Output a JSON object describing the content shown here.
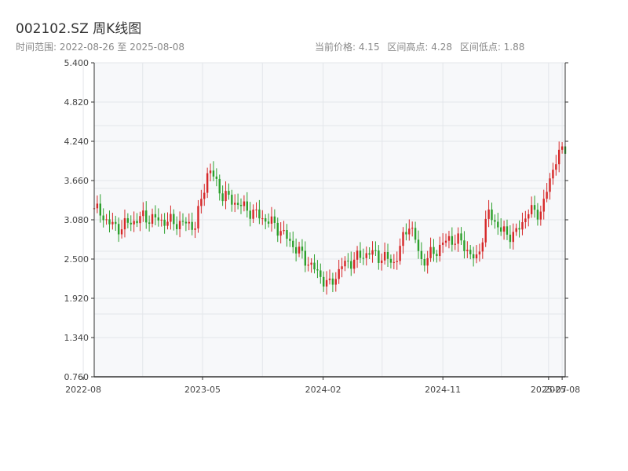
{
  "title": "002102.SZ 周K线图",
  "subtitle": "时间范围: 2022-08-26 至 2025-08-08",
  "stats": {
    "current": "当前价格: 4.15",
    "high": "区间高点: 4.28",
    "low": "区间低点: 1.88"
  },
  "colors": {
    "up": "#d62728",
    "down": "#2ca02c",
    "plot_bg": "#f7f8fa",
    "grid": "#e3e6ea"
  },
  "chart_data": {
    "type": "candlestick",
    "x_axis": "time",
    "ylim": [
      0.76,
      5.4
    ],
    "yticks": [
      "5.400",
      "4.820",
      "4.240",
      "3.660",
      "3.080",
      "2.500",
      "1.920",
      "1.340",
      "0.760"
    ],
    "xticks": [
      "2022-08",
      "2023-05",
      "2024-02",
      "2024-11",
      "2025-07",
      "2025-08"
    ],
    "date_range": [
      "2022-08-26",
      "2025-08-08"
    ],
    "close_trend": [
      {
        "date": "2022-08",
        "close": 3.25
      },
      {
        "date": "2022-10",
        "close": 2.95
      },
      {
        "date": "2022-12",
        "close": 3.12
      },
      {
        "date": "2023-02",
        "close": 3.05
      },
      {
        "date": "2023-04",
        "close": 3.0
      },
      {
        "date": "2023-05",
        "close": 3.85
      },
      {
        "date": "2023-06",
        "close": 3.45
      },
      {
        "date": "2023-08",
        "close": 3.22
      },
      {
        "date": "2023-10",
        "close": 3.0
      },
      {
        "date": "2023-12",
        "close": 2.55
      },
      {
        "date": "2024-02",
        "close": 2.1
      },
      {
        "date": "2024-03",
        "close": 2.4
      },
      {
        "date": "2024-05",
        "close": 2.6
      },
      {
        "date": "2024-07",
        "close": 2.45
      },
      {
        "date": "2024-08",
        "close": 3.05
      },
      {
        "date": "2024-09",
        "close": 2.45
      },
      {
        "date": "2024-11",
        "close": 2.8
      },
      {
        "date": "2024-12",
        "close": 2.75
      },
      {
        "date": "2025-01",
        "close": 2.45
      },
      {
        "date": "2025-02",
        "close": 3.2
      },
      {
        "date": "2025-03",
        "close": 2.9
      },
      {
        "date": "2025-04",
        "close": 2.85
      },
      {
        "date": "2025-05",
        "close": 3.2
      },
      {
        "date": "2025-06",
        "close": 3.2
      },
      {
        "date": "2025-07",
        "close": 3.95
      },
      {
        "date": "2025-08",
        "close": 4.15
      }
    ],
    "current_price": 4.15,
    "period_high": 4.28,
    "period_low": 1.88
  }
}
